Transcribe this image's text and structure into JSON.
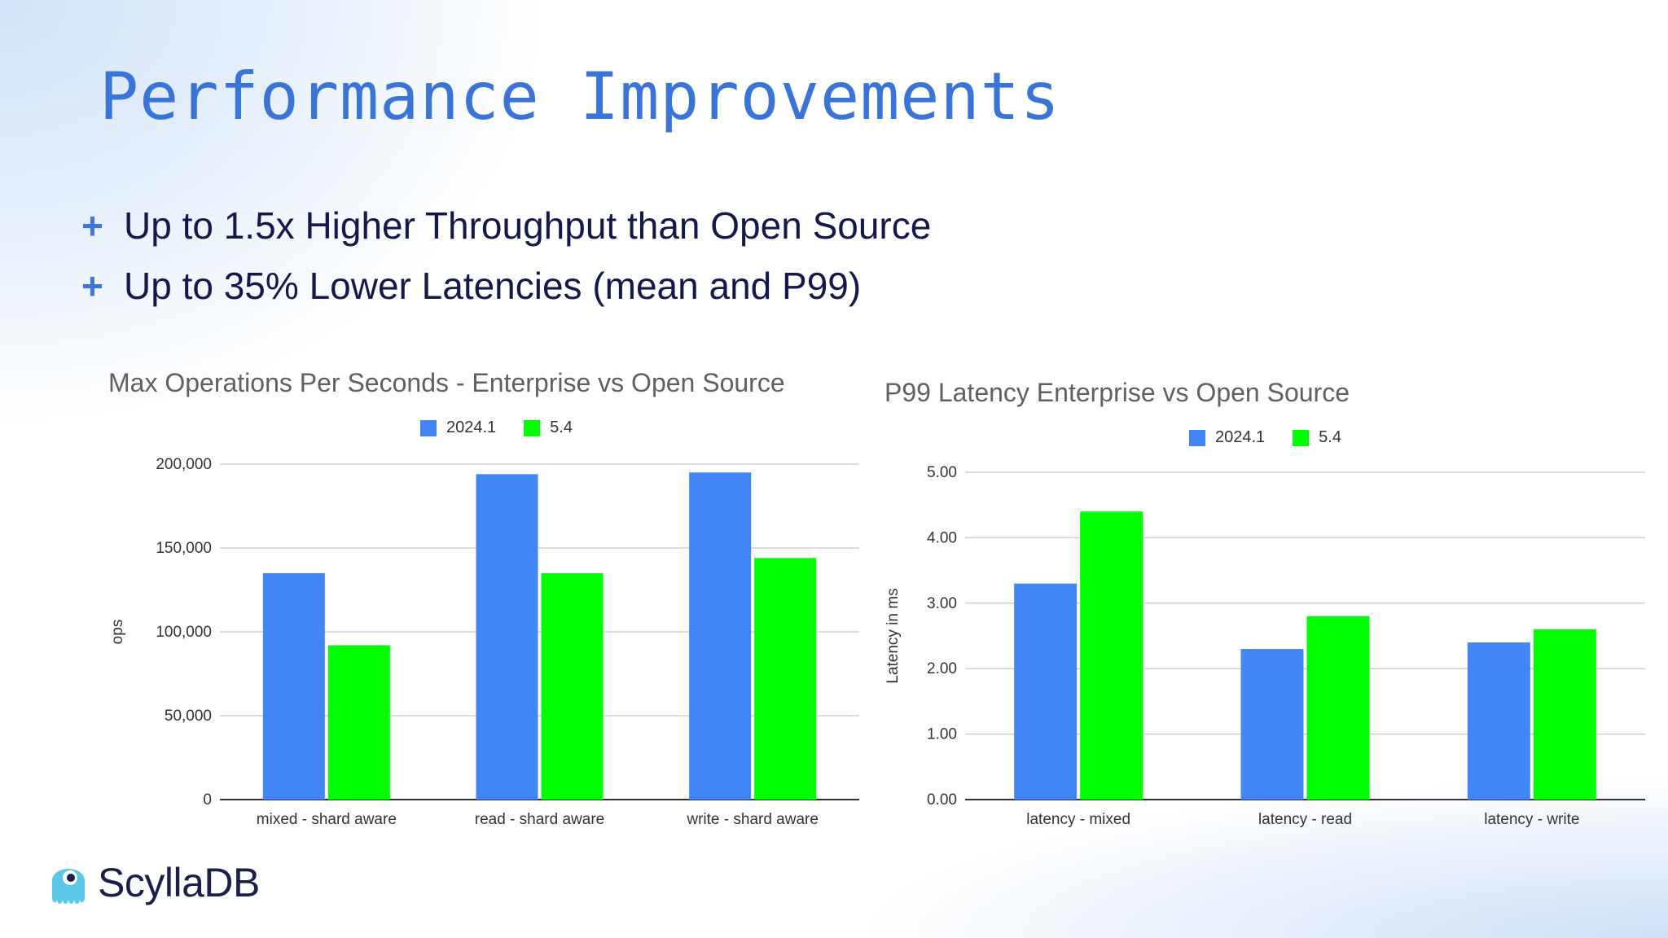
{
  "slide": {
    "title": "Performance Improvements",
    "bullets": [
      "Up to 1.5x Higher Throughput than Open Source",
      "Up to 35% Lower Latencies (mean and P99)"
    ],
    "bullet_marker": "+",
    "logo_text": "ScyllaDB",
    "logo_icon": "octopus-mascot-icon"
  },
  "colors": {
    "title": "#3b74d9",
    "series_2024": "#4285f4",
    "series_54": "#00ff00",
    "text_dark": "#14184a"
  },
  "chart_data": [
    {
      "type": "bar",
      "title": "Max Operations Per Seconds - Enterprise vs Open Source",
      "xlabel": "",
      "ylabel": "ops",
      "categories": [
        "mixed - shard aware",
        "read - shard aware",
        "write - shard aware"
      ],
      "series": [
        {
          "name": "2024.1",
          "values": [
            135000,
            194000,
            195000
          ]
        },
        {
          "name": "5.4",
          "values": [
            92000,
            135000,
            144000
          ]
        }
      ],
      "ylim": [
        0,
        200000
      ],
      "yticks": [
        0,
        50000,
        100000,
        150000,
        200000
      ],
      "ytick_labels": [
        "0",
        "50,000",
        "100,000",
        "150,000",
        "200,000"
      ],
      "grid": true,
      "legend": "top-center"
    },
    {
      "type": "bar",
      "title": "P99 Latency Enterprise vs Open Source",
      "xlabel": "",
      "ylabel": "Latency in ms",
      "categories": [
        "latency - mixed",
        "latency - read",
        "latency - write"
      ],
      "series": [
        {
          "name": "2024.1",
          "values": [
            3.3,
            2.3,
            2.4
          ]
        },
        {
          "name": "5.4",
          "values": [
            4.4,
            2.8,
            2.6
          ]
        }
      ],
      "ylim": [
        0,
        5
      ],
      "yticks": [
        0,
        1,
        2,
        3,
        4,
        5
      ],
      "ytick_labels": [
        "0.00",
        "1.00",
        "2.00",
        "3.00",
        "4.00",
        "5.00"
      ],
      "grid": true,
      "legend": "top-center"
    }
  ]
}
